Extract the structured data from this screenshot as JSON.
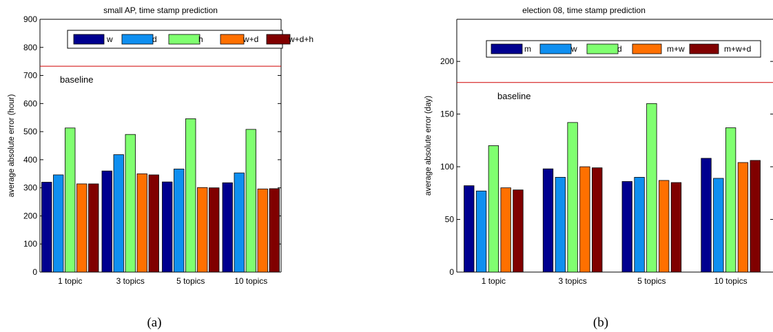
{
  "colors": {
    "series": [
      "#00008f",
      "#0f8ff0",
      "#80ff70",
      "#ff7000",
      "#800000"
    ],
    "baseline": "#d00000",
    "axis": "#000000"
  },
  "chart_data": [
    {
      "type": "bar",
      "title": "small AP, time stamp prediction",
      "ylabel": "average absolute error (hour)",
      "xlabel": "",
      "categories": [
        "1 topic",
        "3 topics",
        "5 topics",
        "10 topics"
      ],
      "ylim": [
        0,
        900
      ],
      "yticks": [
        0,
        100,
        200,
        300,
        400,
        500,
        600,
        700,
        800,
        900
      ],
      "series": [
        {
          "name": "w",
          "values": [
            320,
            360,
            321,
            318
          ]
        },
        {
          "name": "d",
          "values": [
            346,
            418,
            367,
            353
          ]
        },
        {
          "name": "h",
          "values": [
            513,
            490,
            546,
            508
          ]
        },
        {
          "name": "w+d",
          "values": [
            314,
            350,
            301,
            296
          ]
        },
        {
          "name": "w+d+h",
          "values": [
            314,
            346,
            300,
            297
          ]
        }
      ],
      "baseline": {
        "label": "baseline",
        "value": 733
      },
      "legend": "top",
      "caption": "(a)"
    },
    {
      "type": "bar",
      "title": "election 08, time stamp prediction",
      "ylabel": "average absolute error (day)",
      "xlabel": "",
      "categories": [
        "1 topic",
        "3 topics",
        "5 topics",
        "10 topics"
      ],
      "ylim": [
        0,
        240
      ],
      "yticks": [
        0,
        50,
        100,
        150,
        200
      ],
      "series": [
        {
          "name": "m",
          "values": [
            82,
            98,
            86,
            108
          ]
        },
        {
          "name": "w",
          "values": [
            77,
            90,
            90,
            89
          ]
        },
        {
          "name": "d",
          "values": [
            120,
            142,
            160,
            137
          ]
        },
        {
          "name": "m+w",
          "values": [
            80,
            100,
            87,
            104
          ]
        },
        {
          "name": "m+w+d",
          "values": [
            78,
            99,
            85,
            106
          ]
        }
      ],
      "baseline": {
        "label": "baseline",
        "value": 180
      },
      "legend": "top",
      "caption": "(b)"
    }
  ]
}
